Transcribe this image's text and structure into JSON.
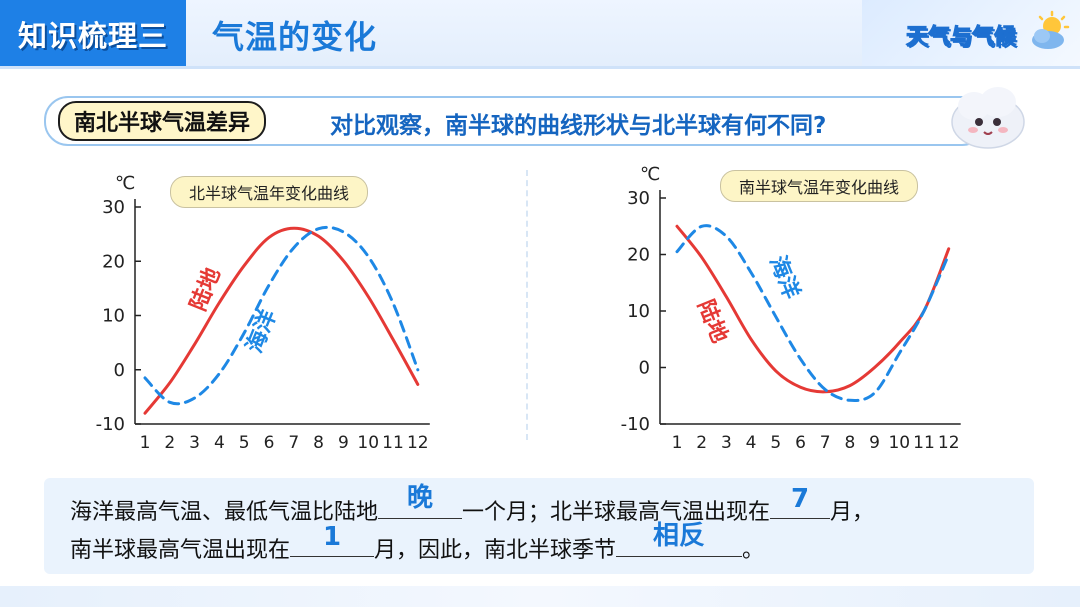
{
  "header": {
    "badge": "知识梳理三",
    "title": "气温的变化",
    "brand": "天气与气候"
  },
  "question": {
    "tag": "南北半球气温差异",
    "text": "对比观察，南半球的曲线形状与北半球有何不同?"
  },
  "chart_data": [
    {
      "type": "line",
      "title": "北半球气温年变化曲线",
      "ylabel": "℃",
      "x": [
        1,
        2,
        3,
        4,
        5,
        6,
        7,
        8,
        9,
        10,
        11,
        12
      ],
      "ylim": [
        -10,
        30
      ],
      "yticks": [
        30,
        20,
        10,
        0,
        -10
      ],
      "grid": false,
      "series": [
        {
          "name": "陆地",
          "color": "#e53935",
          "style": "solid",
          "values": [
            -8,
            -2.4,
            4.7,
            12.4,
            19.2,
            24.4,
            26.1,
            24.6,
            20.1,
            13.5,
            5.6,
            -2.7
          ]
        },
        {
          "name": "海洋",
          "color": "#1e88e5",
          "style": "dashed",
          "values": [
            -1.5,
            -6,
            -5.2,
            -0.7,
            6.8,
            15.6,
            22.5,
            26,
            25.4,
            20.9,
            12.3,
            0
          ]
        }
      ]
    },
    {
      "type": "line",
      "title": "南半球气温年变化曲线",
      "ylabel": "℃",
      "x": [
        1,
        2,
        3,
        4,
        5,
        6,
        7,
        8,
        9,
        10,
        11,
        12
      ],
      "ylim": [
        -10,
        30
      ],
      "yticks": [
        30,
        20,
        10,
        0,
        -10
      ],
      "grid": false,
      "series": [
        {
          "name": "陆地",
          "color": "#e53935",
          "style": "solid",
          "values": [
            25,
            19.5,
            12.5,
            5,
            -0.6,
            -3.5,
            -4.3,
            -3.2,
            0,
            4.4,
            10,
            21
          ]
        },
        {
          "name": "海洋",
          "color": "#1e88e5",
          "style": "dashed",
          "values": [
            20.5,
            25,
            23.2,
            16.8,
            9,
            1.5,
            -3.9,
            -5.8,
            -4.5,
            2.5,
            10,
            20
          ]
        }
      ]
    }
  ],
  "answers": {
    "line1_a": "海洋最高气温、最低气温比陆地",
    "blank1": "晚",
    "line1_b": "一个月；北半球最高气温出现在",
    "blank2": "7",
    "line1_c": "月，",
    "line2_a": "南半球最高气温出现在",
    "blank3": "1",
    "line2_b": "月，因此，南北半球季节",
    "blank4": "相反",
    "line2_c": "。"
  }
}
